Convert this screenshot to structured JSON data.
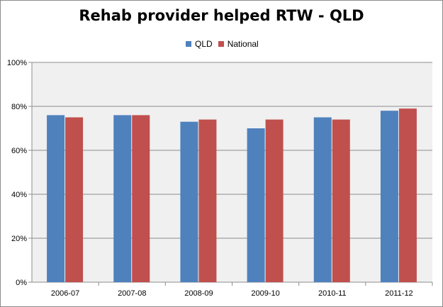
{
  "chart_data": {
    "type": "bar",
    "title": "Rehab provider helped RTW - QLD",
    "categories": [
      "2006-07",
      "2007-08",
      "2008-09",
      "2009-10",
      "2010-11",
      "2011-12"
    ],
    "series": [
      {
        "name": "QLD",
        "color": "#4f81bd",
        "values": [
          76,
          76,
          73,
          70,
          75,
          78
        ]
      },
      {
        "name": "National",
        "color": "#c0504d",
        "values": [
          75,
          76,
          74,
          74,
          74,
          79
        ]
      }
    ],
    "ylim": [
      0,
      100
    ],
    "yticks": [
      "0%",
      "20%",
      "40%",
      "60%",
      "80%",
      "100%"
    ],
    "legend_position": "top",
    "grid": true,
    "plot_background": "#f0f0f0"
  }
}
